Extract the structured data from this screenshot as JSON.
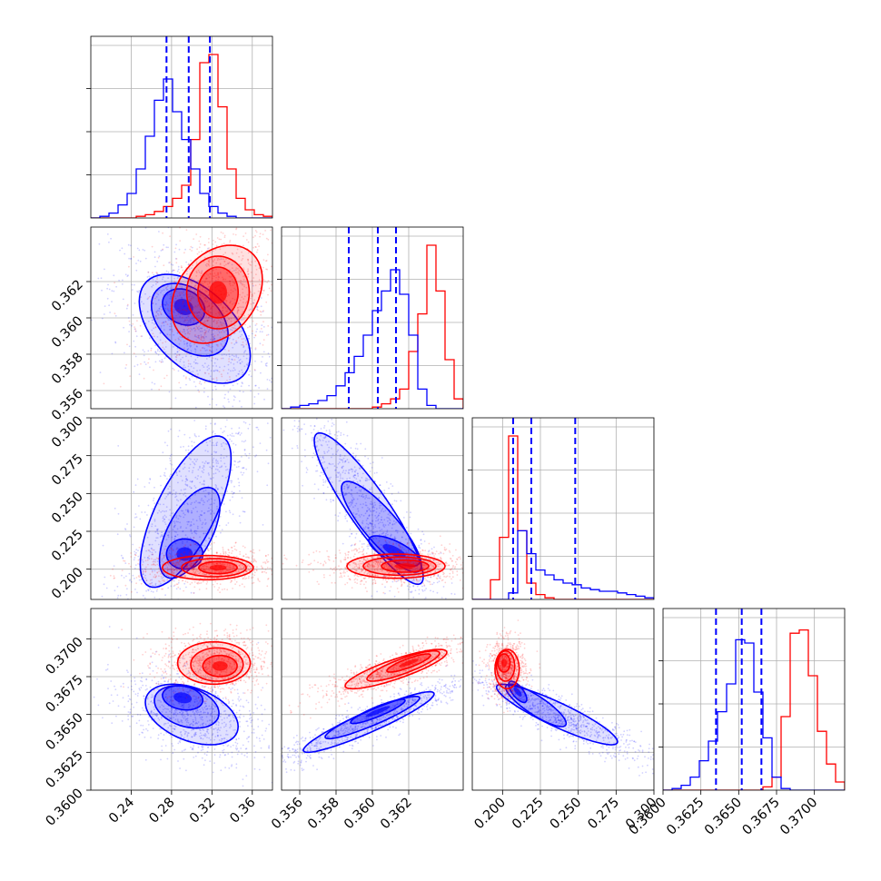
{
  "chart_data": {
    "type": "corner",
    "parameters": 4,
    "colors": {
      "red": "#ff0000",
      "blue": "#0000ff",
      "grid": "#b0b0b0"
    },
    "grid": true,
    "ranges": [
      [
        0.2,
        0.38
      ],
      [
        0.355,
        0.365
      ],
      [
        0.18,
        0.3
      ],
      [
        0.36,
        0.372
      ]
    ],
    "ticks": [
      [
        "0.24",
        "0.28",
        "0.32",
        "0.36"
      ],
      [
        "0.356",
        "0.358",
        "0.360",
        "0.362"
      ],
      [
        "0.200",
        "0.225",
        "0.250",
        "0.275",
        "0.300"
      ],
      [
        "0.3600",
        "0.3625",
        "0.3650",
        "0.3675",
        "0.3700"
      ]
    ],
    "quantiles_blue": [
      [
        0.275,
        0.297,
        0.318
      ],
      [
        0.3587,
        0.3603,
        0.3613
      ],
      [
        0.207,
        0.219,
        0.248
      ],
      [
        0.3635,
        0.3652,
        0.3665
      ]
    ],
    "hist": {
      "red": [
        {
          "edges_start": 0.2,
          "step": 0.009,
          "counts": [
            0,
            0,
            0,
            0,
            0,
            1,
            2,
            4,
            7,
            12,
            20,
            48,
            95,
            100,
            68,
            30,
            12,
            5,
            2,
            1
          ]
        },
        {
          "edges_start": 0.355,
          "step": 0.0005,
          "counts": [
            0,
            0,
            0,
            0,
            0,
            0,
            0,
            0,
            0,
            0,
            1,
            3,
            6,
            12,
            35,
            58,
            100,
            72,
            30,
            6
          ]
        },
        {
          "edges_start": 0.18,
          "step": 0.006,
          "counts": [
            0,
            0,
            12,
            38,
            100,
            42,
            10,
            3,
            1,
            0,
            0,
            0,
            0,
            0,
            0,
            0,
            0,
            0,
            0,
            0
          ]
        },
        {
          "edges_start": 0.36,
          "step": 0.0006,
          "counts": [
            0,
            0,
            0,
            0,
            0,
            0,
            0,
            0,
            0,
            0,
            0,
            2,
            8,
            45,
            96,
            98,
            70,
            36,
            16,
            5
          ]
        }
      ],
      "blue": [
        {
          "edges_start": 0.2,
          "step": 0.009,
          "counts": [
            0,
            1,
            3,
            8,
            15,
            30,
            50,
            72,
            85,
            65,
            48,
            30,
            15,
            7,
            3,
            1,
            0,
            0,
            0,
            0
          ]
        },
        {
          "edges_start": 0.355,
          "step": 0.0005,
          "counts": [
            0,
            1,
            2,
            3,
            5,
            8,
            14,
            22,
            32,
            45,
            60,
            72,
            85,
            70,
            45,
            12,
            2,
            0,
            0,
            0
          ]
        },
        {
          "edges_start": 0.18,
          "step": 0.006,
          "counts": [
            0,
            0,
            0,
            0,
            4,
            42,
            28,
            18,
            15,
            12,
            10,
            9,
            7,
            6,
            5,
            5,
            4,
            3,
            2,
            1
          ]
        },
        {
          "edges_start": 0.36,
          "step": 0.0006,
          "counts": [
            0,
            1,
            3,
            8,
            18,
            30,
            48,
            65,
            92,
            90,
            60,
            32,
            8,
            1,
            0,
            0,
            0,
            0,
            0,
            0
          ]
        }
      ]
    },
    "contours": {
      "p1_0": {
        "red": [
          [
            0.326,
            0.3614,
            0.02,
            0.0014,
            0
          ],
          [
            0.326,
            0.3614,
            0.031,
            0.002,
            0
          ],
          [
            0.325,
            0.3613,
            0.045,
            0.0027,
            0.3
          ]
        ],
        "blue": [
          [
            0.292,
            0.3606,
            0.021,
            0.001,
            -0.2
          ],
          [
            0.298,
            0.3599,
            0.038,
            0.002,
            -0.4
          ],
          [
            0.303,
            0.3594,
            0.055,
            0.003,
            -0.5
          ]
        ]
      },
      "p2_0": {
        "red": [
          [
            0.326,
            0.201,
            0.019,
            0.004,
            0
          ],
          [
            0.322,
            0.201,
            0.032,
            0.006,
            0
          ],
          [
            0.316,
            0.201,
            0.045,
            0.008,
            0
          ]
        ],
        "blue": [
          [
            0.293,
            0.21,
            0.018,
            0.01,
            0
          ],
          [
            0.298,
            0.224,
            0.03,
            0.03,
            0.6
          ],
          [
            0.294,
            0.238,
            0.045,
            0.05,
            0.7
          ]
        ]
      },
      "p2_1": {
        "red": [
          [
            0.3618,
            0.202,
            0.0013,
            0.004,
            0
          ],
          [
            0.3615,
            0.202,
            0.002,
            0.006,
            0
          ],
          [
            0.3613,
            0.202,
            0.0027,
            0.008,
            0
          ]
        ],
        "blue": [
          [
            0.3612,
            0.212,
            0.0014,
            0.01,
            -0.7
          ],
          [
            0.3605,
            0.228,
            0.0022,
            0.03,
            -0.85
          ],
          [
            0.3598,
            0.24,
            0.003,
            0.05,
            -0.9
          ]
        ]
      },
      "p3_0": {
        "red": [
          [
            0.328,
            0.3682,
            0.017,
            0.0007,
            0
          ],
          [
            0.325,
            0.3683,
            0.026,
            0.0011,
            0
          ],
          [
            0.322,
            0.3684,
            0.036,
            0.0014,
            0
          ]
        ],
        "blue": [
          [
            0.291,
            0.3661,
            0.02,
            0.0008,
            -0.2
          ],
          [
            0.295,
            0.3655,
            0.032,
            0.0014,
            -0.3
          ],
          [
            0.3,
            0.365,
            0.046,
            0.002,
            -0.4
          ]
        ]
      },
      "p3_1": {
        "red": [
          [
            0.362,
            0.3684,
            0.0012,
            0.0006,
            0.85
          ],
          [
            0.3617,
            0.3682,
            0.002,
            0.001,
            0.85
          ],
          [
            0.3613,
            0.368,
            0.0028,
            0.0013,
            0.85
          ]
        ],
        "blue": [
          [
            0.3603,
            0.3652,
            0.0015,
            0.0008,
            0.9
          ],
          [
            0.36,
            0.3648,
            0.0026,
            0.0014,
            0.92
          ],
          [
            0.3598,
            0.3645,
            0.0036,
            0.002,
            0.93
          ]
        ]
      },
      "p3_2": {
        "red": [
          [
            0.201,
            0.3684,
            0.004,
            0.0006,
            0
          ],
          [
            0.202,
            0.3682,
            0.006,
            0.001,
            0
          ],
          [
            0.203,
            0.368,
            0.008,
            0.0013,
            0
          ]
        ],
        "blue": [
          [
            0.21,
            0.3665,
            0.006,
            0.0007,
            -0.7
          ],
          [
            0.222,
            0.3656,
            0.02,
            0.0014,
            -0.85
          ],
          [
            0.236,
            0.365,
            0.04,
            0.002,
            -0.9
          ]
        ]
      }
    }
  }
}
